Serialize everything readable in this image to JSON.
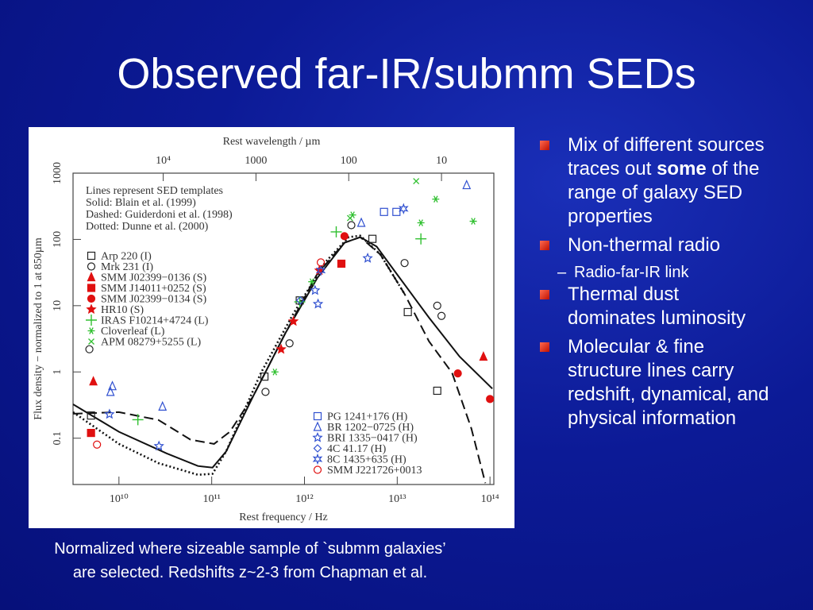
{
  "title": "Observed far-IR/submm SEDs",
  "bullets": [
    {
      "runs": [
        {
          "text": "Mix of different sources traces out "
        },
        {
          "text": "some",
          "bold": true
        },
        {
          "text": " of the range of galaxy SED properties"
        }
      ]
    },
    {
      "runs": [
        {
          "text": "Non-thermal radio"
        }
      ],
      "sub": [
        "Radio-far-IR link"
      ]
    },
    {
      "runs": [
        {
          "text": "Thermal dust dominates luminosity"
        }
      ]
    },
    {
      "runs": [
        {
          "text": "Molecular & fine structure lines carry redshift, dynamical, and physical information"
        }
      ]
    }
  ],
  "caption": [
    "Normalized where sizeable sample of `submm galaxies’",
    "are selected. Redshifts z~2-3 from Chapman et al."
  ],
  "chart_data": {
    "type": "scatter",
    "xlabel": "Rest frequency / Hz",
    "x2label": "Rest wavelength / µm",
    "ylabel": "Flux density − normalized to 1 at 850µm",
    "xlog": true,
    "ylog": true,
    "xlim": [
      3200000000.0,
      110000000000000.0
    ],
    "ylim": [
      0.02,
      1000
    ],
    "xticks": [
      {
        "value": 10000000000.0,
        "label": "10¹⁰"
      },
      {
        "value": 100000000000.0,
        "label": "10¹¹"
      },
      {
        "value": 1000000000000.0,
        "label": "10¹²"
      },
      {
        "value": 10000000000000.0,
        "label": "10¹³"
      },
      {
        "value": 100000000000000.0,
        "label": "10¹⁴"
      }
    ],
    "x2ticks": [
      {
        "value": 10000,
        "label": "10⁴"
      },
      1000,
      100,
      10
    ],
    "x2_conversion": 300000000000000.0,
    "yticks": [
      0.1,
      1,
      10,
      100,
      1000
    ],
    "notes": [
      "Lines represent SED templates",
      "Solid: Blain et al. (1999)",
      "Dashed: Guiderdoni et al. (1998)",
      "Dotted: Dunne et al. (2000)"
    ],
    "templates": [
      {
        "dash": "solid",
        "x": [
          3200000000.0,
          10000000000.0,
          32600000000.0,
          71000000000.0,
          102000000000.0,
          143000000000.0,
          280000000000.0,
          620000000000.0,
          1370000000000.0,
          2700000000000.0,
          4000000000000.0,
          6000000000000.0,
          9900000000000.0,
          22000000000000.0,
          47000000000000.0,
          106000000000000.0
        ],
        "y": [
          0.325,
          0.125,
          0.059,
          0.038,
          0.036,
          0.063,
          0.43,
          3.8,
          26,
          89,
          108,
          78,
          30,
          6.6,
          1.7,
          0.56
        ]
      },
      {
        "dash": "dashed",
        "x": [
          3200000000.0,
          10000000000.0,
          26700000000.0,
          59000000000.0,
          106000000000.0,
          157000000000.0,
          280000000000.0,
          620000000000.0,
          1370000000000.0,
          2700000000000.0,
          4000000000000.0,
          6600000000000.0,
          12000000000000.0,
          22000000000000.0,
          39000000000000.0,
          63000000000000.0,
          89000000000000.0
        ],
        "y": [
          0.234,
          0.247,
          0.188,
          0.095,
          0.082,
          0.125,
          0.43,
          3.8,
          30,
          89,
          108,
          59,
          15,
          2.9,
          0.97,
          0.14,
          0.021
        ]
      },
      {
        "dash": "dotted",
        "x": [
          3200000000.0,
          10000000000.0,
          26700000000.0,
          71000000000.0,
          102000000000.0,
          143000000000.0,
          340000000000.0,
          760000000000.0,
          1670000000000.0,
          3000000000000.0,
          4000000000000.0,
          6600000000000.0,
          12000000000000.0
        ],
        "y": [
          0.247,
          0.082,
          0.042,
          0.028,
          0.029,
          0.063,
          0.97,
          7.6,
          45,
          108,
          114,
          59,
          15
        ]
      }
    ],
    "series": [
      {
        "name": "Arp 220 (I)",
        "marker": "square",
        "color": "#222222",
        "x": [
          5000000000.0,
          370000000000.0,
          890000000000.0,
          5400000000000.0,
          13000000000000.0,
          27000000000000.0
        ],
        "y": [
          0.22,
          0.85,
          12,
          102,
          8,
          0.52
        ]
      },
      {
        "name": "Mrk 231 (I)",
        "marker": "circle",
        "color": "#222222",
        "x": [
          4800000000.0,
          380000000000.0,
          690000000000.0,
          3200000000000.0,
          12000000000000.0,
          27000000000000.0,
          30000000000000.0
        ],
        "y": [
          2.2,
          0.5,
          2.7,
          164,
          44,
          10,
          7.0
        ]
      },
      {
        "name": "SMM J02399−0136 (S)",
        "marker": "triangle-filled",
        "color": "#e01010",
        "x": [
          5300000000.0,
          85000000000000.0
        ],
        "y": [
          0.72,
          1.7
        ]
      },
      {
        "name": "SMM J14011+0252 (S)",
        "marker": "square-filled",
        "color": "#e01010",
        "x": [
          5000000000.0,
          2500000000000.0
        ],
        "y": [
          0.12,
          43
        ]
      },
      {
        "name": "SMM J02399−0134 (S)",
        "marker": "circle-filled",
        "color": "#e01010",
        "x": [
          45000000000000.0,
          100000000000000.0,
          2700000000000.0
        ],
        "y": [
          0.95,
          0.39,
          112
        ]
      },
      {
        "name": "HR10 (S)",
        "marker": "star-filled",
        "color": "#e01010",
        "x": [
          560000000000.0,
          760000000000.0,
          1450000000000.0
        ],
        "y": [
          2.2,
          5.8,
          34
        ]
      },
      {
        "name": "IRAS F10214+4724 (L)",
        "marker": "plus",
        "color": "#30c030",
        "x": [
          16000000000.0,
          18000000000000.0,
          2200000000000.0,
          890000000000.0
        ],
        "y": [
          0.19,
          102,
          130,
          11.4
        ]
      },
      {
        "name": "Cloverleaf (L)",
        "marker": "asterisk",
        "color": "#30c030",
        "x": [
          480000000000.0,
          1200000000000.0,
          3300000000000.0,
          26000000000000.0,
          18000000000000.0,
          66000000000000.0
        ],
        "y": [
          1.0,
          23,
          234,
          405,
          178,
          188
        ]
      },
      {
        "name": "APM 08279+5255 (L)",
        "marker": "cross",
        "color": "#30c030",
        "x": [
          16000000000000.0,
          3100000000000.0
        ],
        "y": [
          757,
          210
        ]
      },
      {
        "name": "PG 1241+176 (H)",
        "marker": "square",
        "color": "#3050d0",
        "x": [
          7200000000000.0,
          9800000000000.0
        ],
        "y": [
          260,
          260
        ]
      },
      {
        "name": "BR 1202−0725 (H)",
        "marker": "triangle",
        "color": "#3050d0",
        "x": [
          8500000000.0,
          8100000000.0,
          29500000000.0,
          56000000000000.0,
          4100000000000.0
        ],
        "y": [
          0.61,
          0.5,
          0.3,
          660,
          178
        ]
      },
      {
        "name": "BRI 1335−0417 (H)",
        "marker": "star",
        "color": "#3050d0",
        "x": [
          7900000000.0,
          27000000000.0,
          1300000000000.0,
          1400000000000.0,
          4800000000000.0
        ],
        "y": [
          0.23,
          0.076,
          17,
          10.6,
          52
        ]
      },
      {
        "name": "4C 41.17 (H)",
        "marker": "diamond",
        "color": "#3050d0",
        "x": [
          900000000000.0
        ],
        "y": [
          12
        ]
      },
      {
        "name": "8C 1435+635 (H)",
        "marker": "star6",
        "color": "#3050d0",
        "x": [
          1500000000000.0,
          11700000000000.0
        ],
        "y": [
          34,
          290
        ]
      },
      {
        "name": "SMM J221726+0013",
        "marker": "circle",
        "color": "#e01010",
        "x": [
          5800000000.0,
          1500000000000.0
        ],
        "y": [
          0.08,
          45
        ]
      }
    ]
  }
}
